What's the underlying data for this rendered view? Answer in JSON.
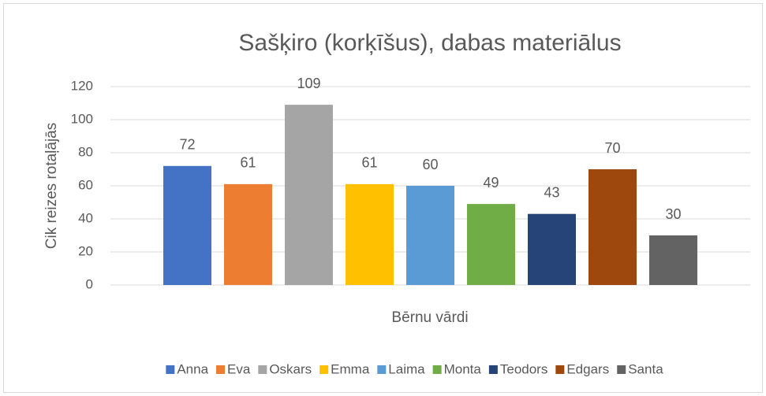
{
  "chart_data": {
    "type": "bar",
    "title": "Sašķiro (korķīšus), dabas materiālus",
    "xlabel": "Bērnu vārdi",
    "ylabel": "Cik reizes rotaļājās",
    "categories": [
      null
    ],
    "series": [
      {
        "name": "Anna",
        "color": "#4472c4",
        "values": [
          72
        ]
      },
      {
        "name": "Eva",
        "color": "#ed7d31",
        "values": [
          61
        ]
      },
      {
        "name": "Oskars",
        "color": "#a5a5a5",
        "values": [
          109
        ]
      },
      {
        "name": "Emma",
        "color": "#ffc000",
        "values": [
          61
        ]
      },
      {
        "name": "Laima",
        "color": "#5b9bd5",
        "values": [
          60
        ]
      },
      {
        "name": "Monta",
        "color": "#70ad47",
        "values": [
          49
        ]
      },
      {
        "name": "Teodors",
        "color": "#264478",
        "values": [
          43
        ]
      },
      {
        "name": "Edgars",
        "color": "#9e480e",
        "values": [
          70
        ]
      },
      {
        "name": "Santa",
        "color": "#636363",
        "values": [
          30
        ]
      }
    ],
    "ylim": [
      0,
      120
    ],
    "yticks": [
      0,
      20,
      40,
      60,
      80,
      100,
      120
    ],
    "grid": true,
    "legend": "bottom"
  }
}
